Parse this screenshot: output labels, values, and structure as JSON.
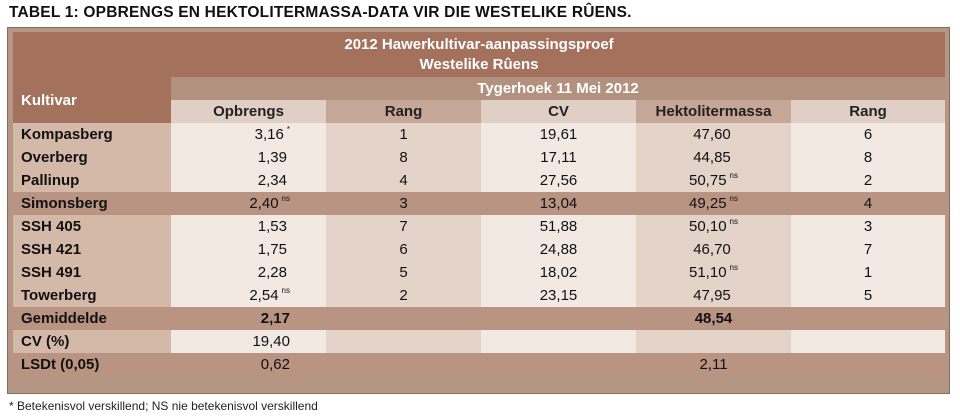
{
  "title": "TABEL 1: OPBRENGS EN HEKTOLITERMASSA-DATA VIR DIE WESTELIKE RÛENS.",
  "header": {
    "trial": "2012 Hawerkultivar-aanpassingsproef",
    "region": "Westelike Rûens",
    "kultivar": "Kultivar",
    "location": "Tygerhoek 11 Mei 2012",
    "columns": [
      "Opbrengs",
      "Rang",
      "CV",
      "Hektolitermassa",
      "Rang"
    ]
  },
  "rows": [
    {
      "name": "Kompasberg",
      "yield": "3,16",
      "yield_sup": "*",
      "rank1": "1",
      "cv": "19,61",
      "hl": "47,60",
      "hl_sup": "",
      "rank2": "6"
    },
    {
      "name": "Overberg",
      "yield": "1,39",
      "yield_sup": "",
      "rank1": "8",
      "cv": "17,11",
      "hl": "44,85",
      "hl_sup": "",
      "rank2": "8"
    },
    {
      "name": "Pallinup",
      "yield": "2,34",
      "yield_sup": "",
      "rank1": "4",
      "cv": "27,56",
      "hl": "50,75",
      "hl_sup": "ns",
      "rank2": "2"
    },
    {
      "name": "Simonsberg",
      "yield": "2,40",
      "yield_sup": "ns",
      "rank1": "3",
      "cv": "13,04",
      "hl": "49,25",
      "hl_sup": "ns",
      "rank2": "4"
    },
    {
      "name": "SSH 405",
      "yield": "1,53",
      "yield_sup": "",
      "rank1": "7",
      "cv": "51,88",
      "hl": "50,10",
      "hl_sup": "ns",
      "rank2": "3"
    },
    {
      "name": "SSH 421",
      "yield": "1,75",
      "yield_sup": "",
      "rank1": "6",
      "cv": "24,88",
      "hl": "46,70",
      "hl_sup": "",
      "rank2": "7"
    },
    {
      "name": "SSH 491",
      "yield": "2,28",
      "yield_sup": "",
      "rank1": "5",
      "cv": "18,02",
      "hl": "51,10",
      "hl_sup": "ns",
      "rank2": "1"
    },
    {
      "name": "Towerberg",
      "yield": "2,54",
      "yield_sup": "ns",
      "rank1": "2",
      "cv": "23,15",
      "hl": "47,95",
      "hl_sup": "",
      "rank2": "5"
    }
  ],
  "summary": {
    "mean_label": "Gemiddelde",
    "mean_yield": "2,17",
    "mean_hl": "48,54",
    "cv_label": "CV (%)",
    "cv_yield": "19,40",
    "lsd_label": "LSDt (0,05)",
    "lsd_yield": "0,62",
    "lsd_hl": "2,11"
  },
  "footnote": "* Betekenisvol verskillend; NS nie betekenisvol verskillend"
}
